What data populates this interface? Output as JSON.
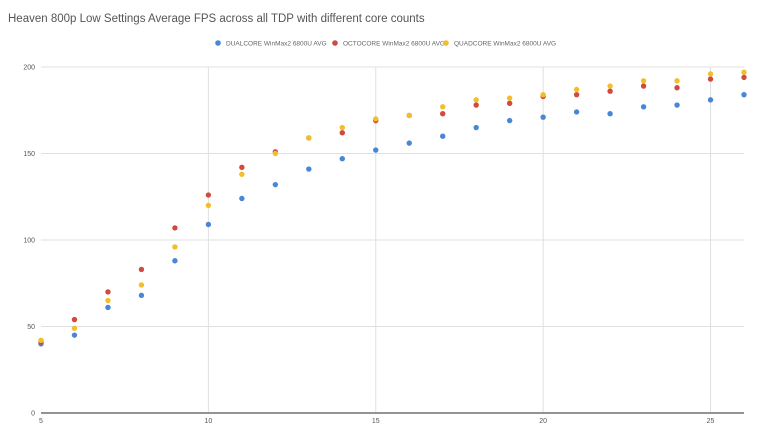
{
  "chart_data": {
    "type": "scatter",
    "title": "Heaven 800p Low Settings Average FPS across all TDP with different core counts",
    "xlabel": "",
    "ylabel": "",
    "xlim": [
      5,
      26
    ],
    "ylim": [
      0,
      200
    ],
    "xticks": [
      5,
      10,
      15,
      20,
      25
    ],
    "yticks": [
      0,
      50,
      100,
      150,
      200
    ],
    "grid": true,
    "legend_position": "top",
    "x": [
      5,
      6,
      7,
      8,
      9,
      10,
      11,
      12,
      13,
      14,
      15,
      16,
      17,
      18,
      19,
      20,
      21,
      22,
      23,
      24,
      25,
      26
    ],
    "series": [
      {
        "name": "DUALCORE WinMax2 6800U AVG",
        "color": "#4a86d8",
        "values": [
          40,
          45,
          61,
          68,
          88,
          109,
          124,
          132,
          141,
          147,
          152,
          156,
          160,
          165,
          169,
          171,
          174,
          173,
          177,
          178,
          181,
          184
        ]
      },
      {
        "name": "OCTOCORE WinMax2 6800U AVG",
        "color": "#d04a3f",
        "values": [
          41,
          54,
          70,
          83,
          107,
          126,
          142,
          151,
          159,
          162,
          169,
          172,
          173,
          178,
          179,
          183,
          184,
          186,
          189,
          188,
          193,
          194
        ]
      },
      {
        "name": "QUADCORE WinMax2 6800U AVG",
        "color": "#f2be2c",
        "values": [
          42,
          49,
          65,
          74,
          96,
          120,
          138,
          150,
          159,
          165,
          170,
          172,
          177,
          181,
          182,
          184,
          187,
          189,
          192,
          192,
          196,
          197
        ]
      }
    ]
  }
}
